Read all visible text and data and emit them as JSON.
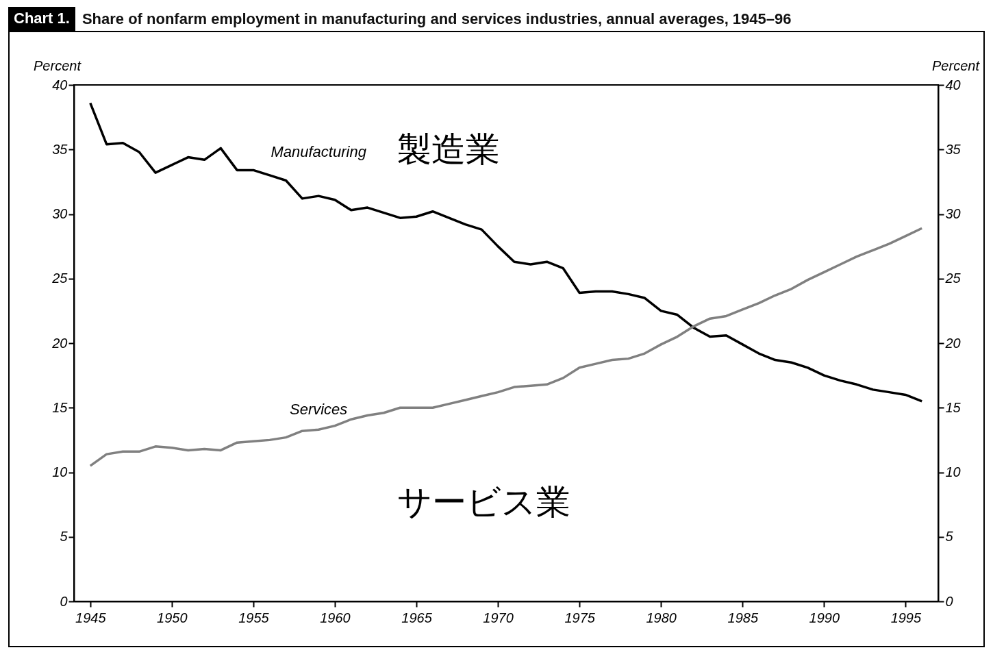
{
  "chart_data": {
    "type": "line",
    "title": "Share of nonfarm employment in manufacturing and services industries, annual averages, 1945–96",
    "ylabel": "Percent",
    "y2label": "Percent",
    "annotations": [
      "Chart 1.",
      "製造業",
      "サービス業"
    ],
    "x": [
      1945,
      1946,
      1947,
      1948,
      1949,
      1950,
      1951,
      1952,
      1953,
      1954,
      1955,
      1956,
      1957,
      1958,
      1959,
      1960,
      1961,
      1962,
      1963,
      1964,
      1965,
      1966,
      1967,
      1968,
      1969,
      1970,
      1971,
      1972,
      1973,
      1974,
      1975,
      1976,
      1977,
      1978,
      1979,
      1980,
      1981,
      1982,
      1983,
      1984,
      1985,
      1986,
      1987,
      1988,
      1989,
      1990,
      1991,
      1992,
      1993,
      1994,
      1995,
      1996
    ],
    "series": [
      {
        "name": "Manufacturing",
        "color": "#000000",
        "values": [
          38.6,
          35.4,
          35.5,
          34.8,
          33.2,
          33.8,
          34.4,
          34.2,
          35.1,
          33.4,
          33.4,
          33.0,
          32.6,
          31.2,
          31.4,
          31.1,
          30.3,
          30.5,
          30.1,
          29.7,
          29.8,
          30.2,
          29.7,
          29.2,
          28.8,
          27.5,
          26.3,
          26.1,
          26.3,
          25.8,
          23.9,
          24.0,
          24.0,
          23.8,
          23.5,
          22.5,
          22.2,
          21.2,
          20.5,
          20.6,
          19.9,
          19.2,
          18.7,
          18.5,
          18.1,
          17.5,
          17.1,
          16.8,
          16.4,
          16.2,
          16.0,
          15.5
        ]
      },
      {
        "name": "Services",
        "color": "#808080",
        "values": [
          10.5,
          11.4,
          11.6,
          11.6,
          12.0,
          11.9,
          11.7,
          11.8,
          11.7,
          12.3,
          12.4,
          12.5,
          12.7,
          13.2,
          13.3,
          13.6,
          14.1,
          14.4,
          14.6,
          15.0,
          15.0,
          15.0,
          15.3,
          15.6,
          15.9,
          16.2,
          16.6,
          16.7,
          16.8,
          17.3,
          18.1,
          18.4,
          18.7,
          18.8,
          19.2,
          19.9,
          20.5,
          21.3,
          21.9,
          22.1,
          22.6,
          23.1,
          23.7,
          24.2,
          24.9,
          25.5,
          26.1,
          26.7,
          27.2,
          27.7,
          28.3,
          28.9
        ]
      }
    ],
    "xlim": [
      1944,
      1997
    ],
    "xticks": [
      1945,
      1950,
      1955,
      1960,
      1965,
      1970,
      1975,
      1980,
      1985,
      1990,
      1995
    ],
    "ylim": [
      0,
      40
    ],
    "yticks": [
      0,
      5,
      10,
      15,
      20,
      25,
      30,
      35,
      40
    ],
    "y2lim": [
      0,
      40
    ],
    "y2ticks": [
      0,
      5,
      10,
      15,
      20,
      25,
      30,
      35,
      40
    ]
  }
}
